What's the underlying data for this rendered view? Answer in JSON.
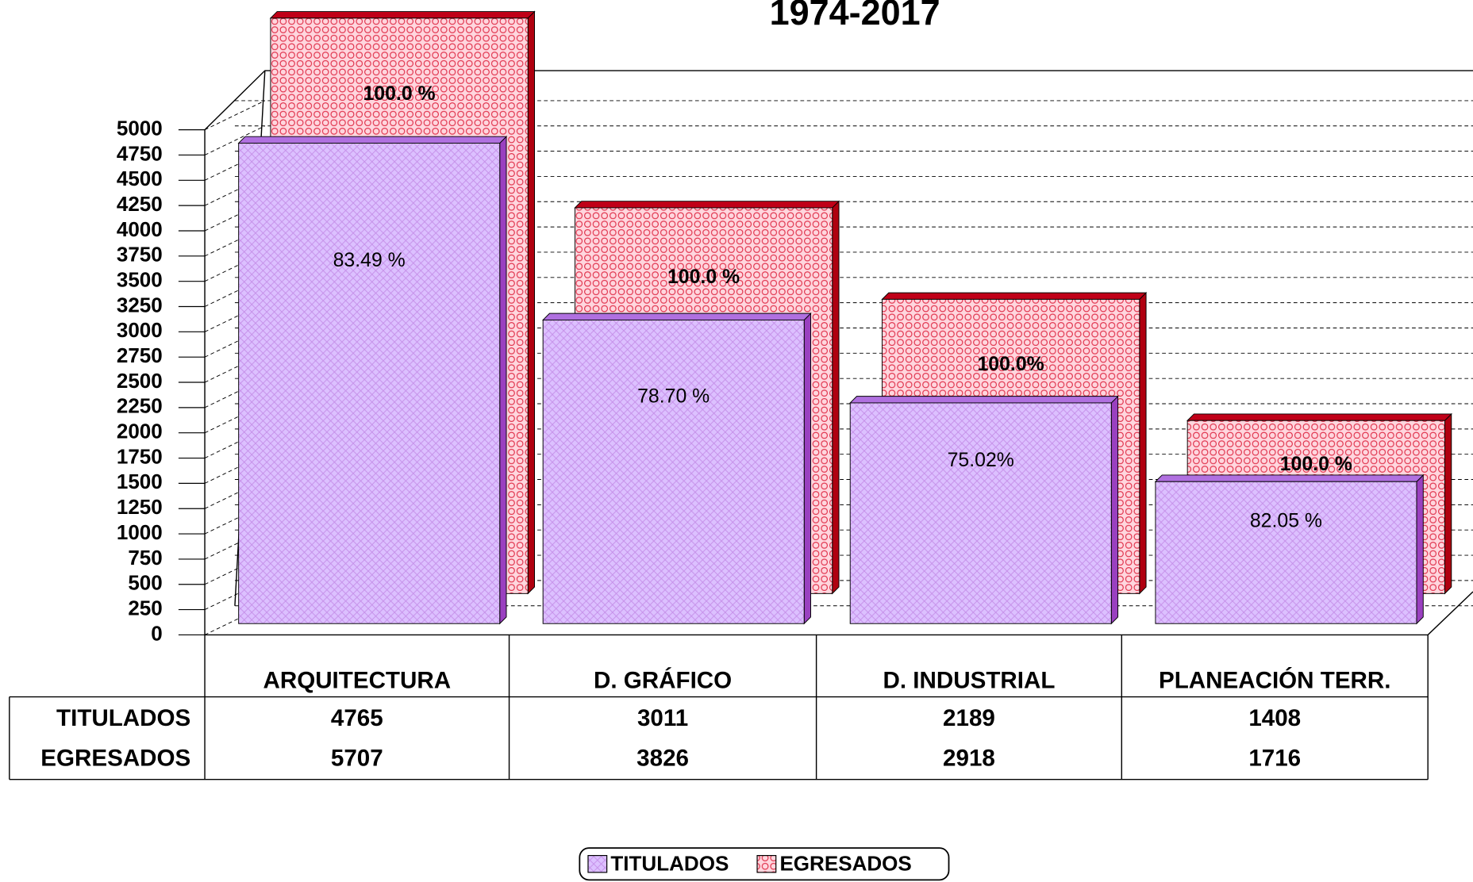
{
  "chart_data": {
    "type": "bar3d",
    "title": "1974-2017",
    "categories": [
      "ARQUITECTURA",
      "D. GRÁFICO",
      "D. INDUSTRIAL",
      "PLANEACIÓN TERR."
    ],
    "series": [
      {
        "name": "TITULADOS",
        "color": "#d9b8ff",
        "values": [
          4765,
          3011,
          2189,
          1408
        ],
        "percent_labels": [
          "83.49 %",
          "78.70  %",
          "75.02%",
          "82.05  %"
        ]
      },
      {
        "name": "EGRESADOS",
        "color": "#ff9bb0",
        "values": [
          5707,
          3826,
          2918,
          1716
        ],
        "percent_labels": [
          "100.0 %",
          "100.0 %",
          "100.0%",
          "100.0 %"
        ]
      }
    ],
    "ylim": [
      0,
      5000
    ],
    "yticks": [
      0,
      250,
      500,
      750,
      1000,
      1250,
      1500,
      1750,
      2000,
      2250,
      2500,
      2750,
      3000,
      3250,
      3500,
      3750,
      4000,
      4250,
      4500,
      4750,
      5000
    ],
    "grid": true
  }
}
